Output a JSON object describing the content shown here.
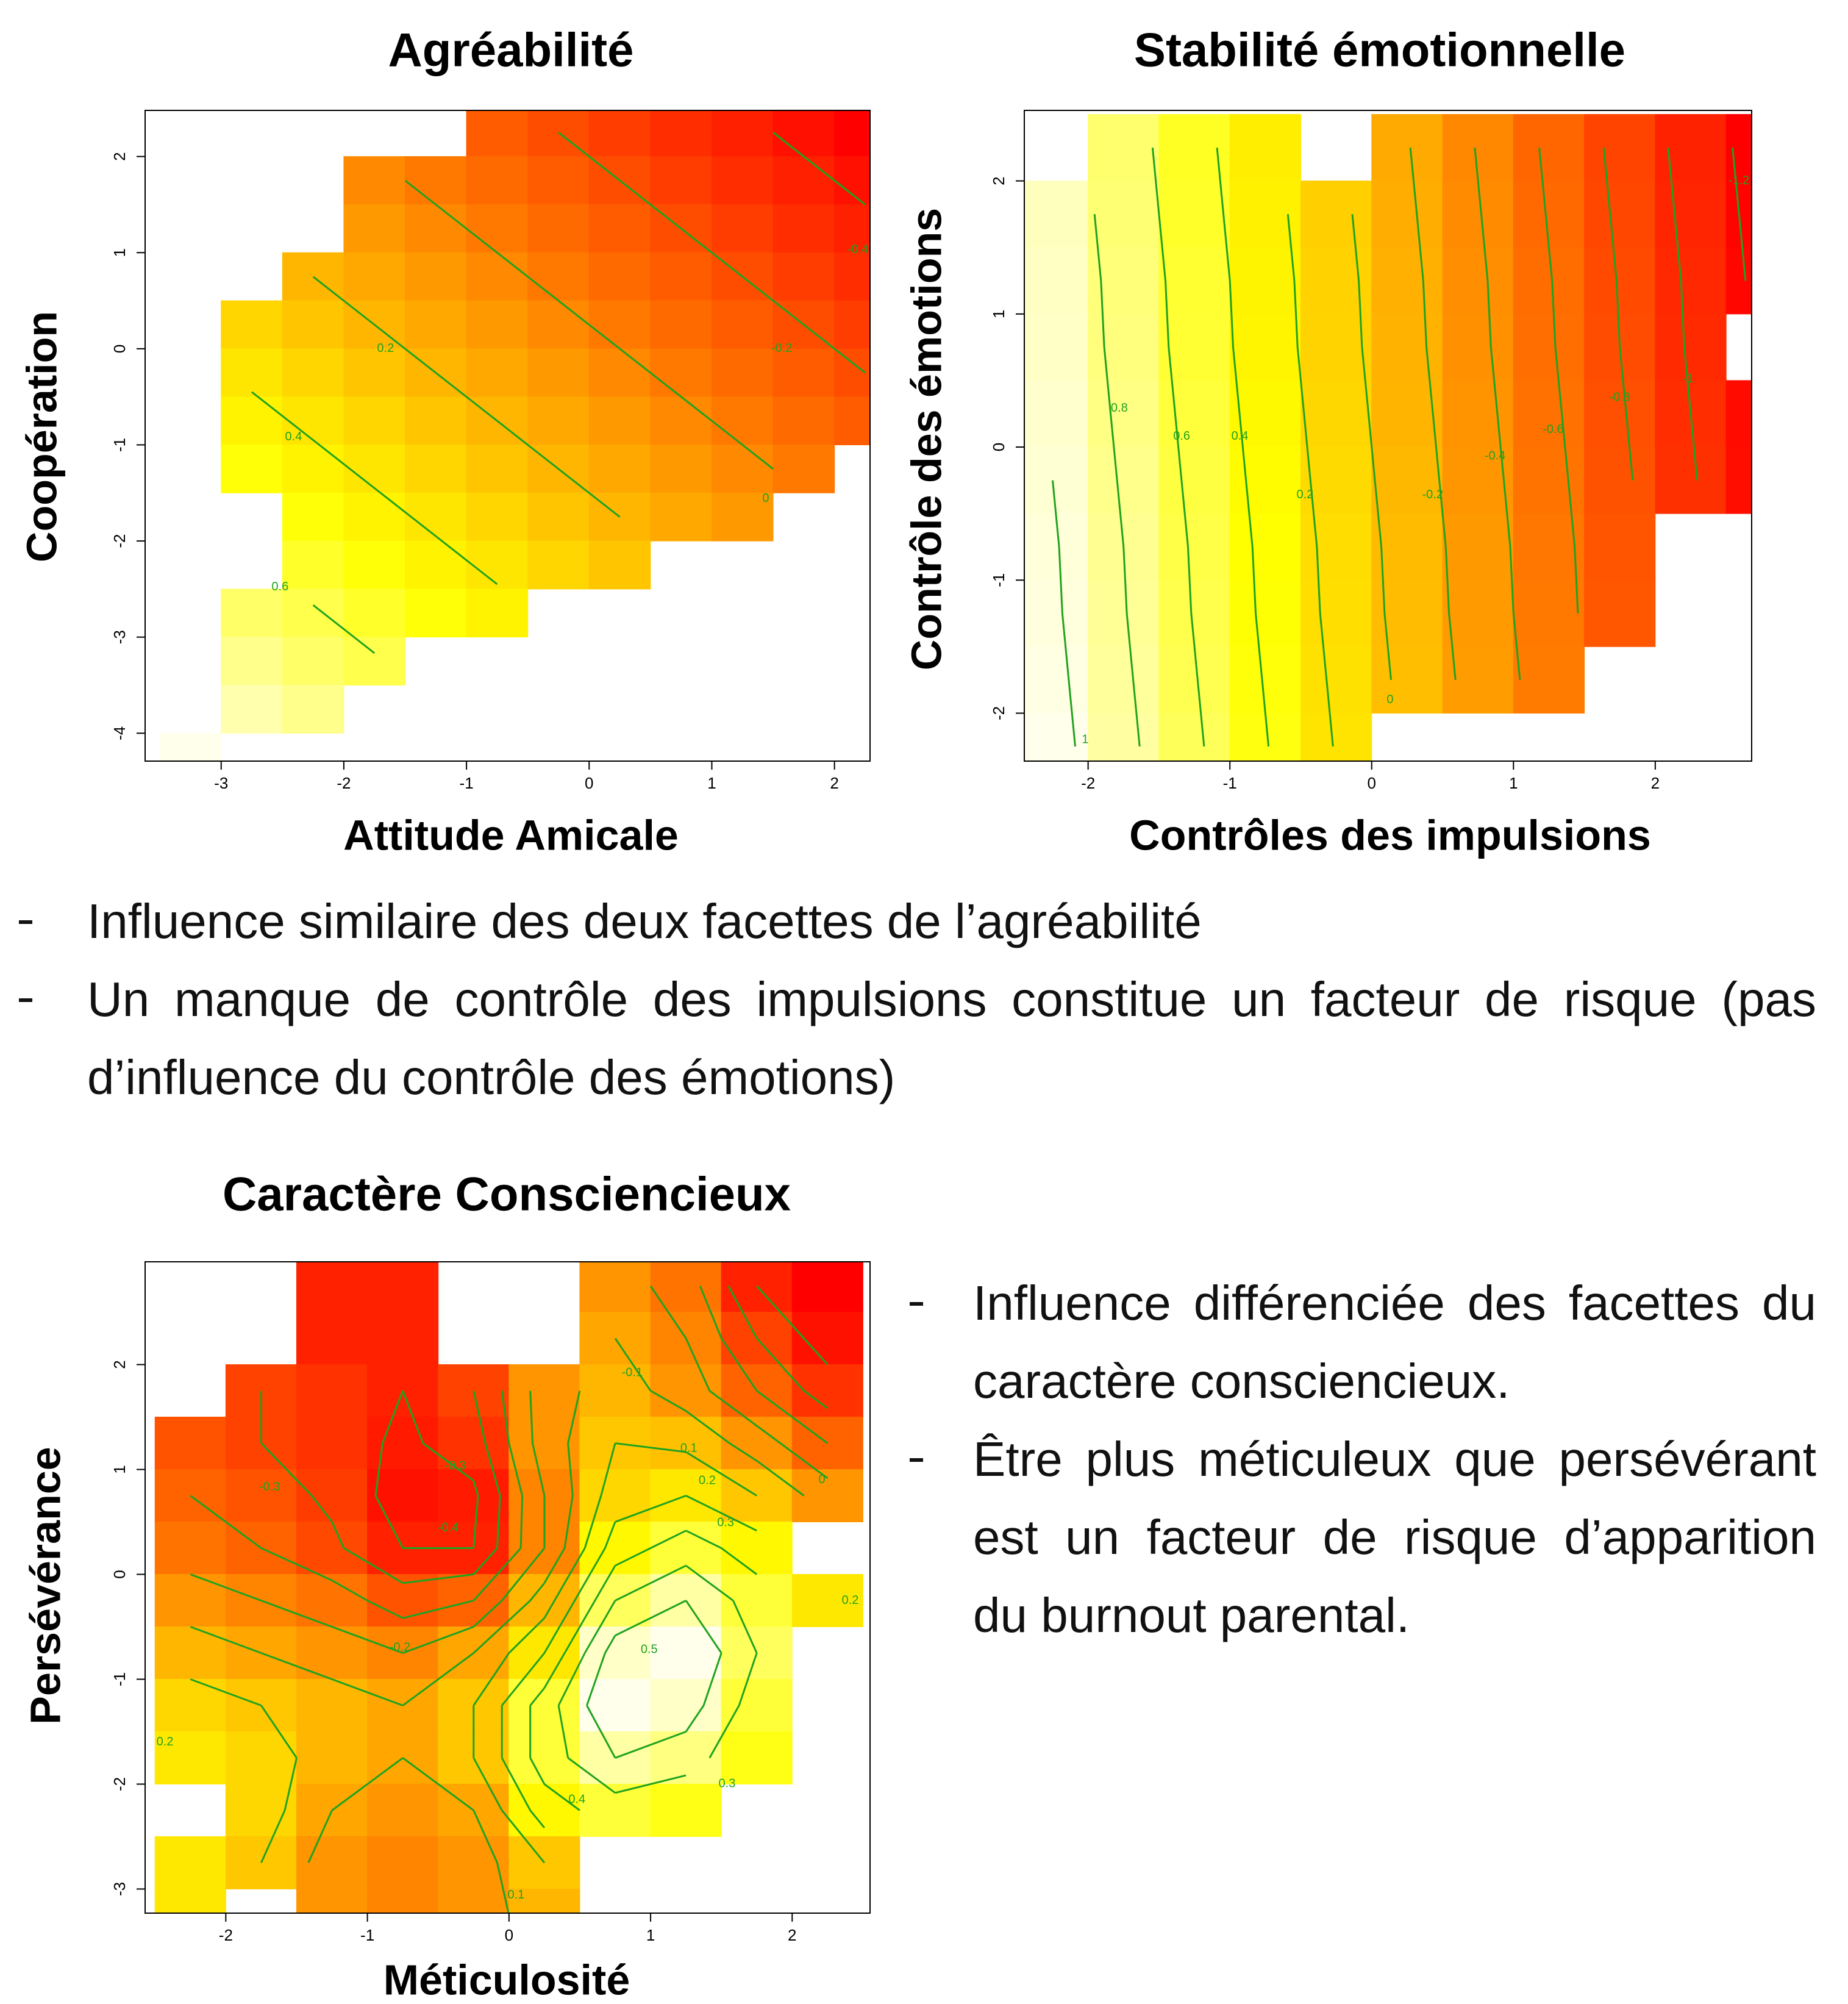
{
  "chart_data": [
    {
      "type": "heatmap",
      "title": "Agréabilité",
      "x_label": "Attitude Amicale",
      "y_label": "Coopération",
      "xlim": [
        -3.62,
        2.29
      ],
      "ylim": [
        -4.29,
        2.48
      ],
      "xticks": [
        -3,
        -2,
        -1,
        0,
        1,
        2
      ],
      "yticks": [
        -4,
        -3,
        -2,
        -1,
        0,
        1,
        2
      ],
      "x": [
        -3.25,
        -2.75,
        -2.25,
        -1.75,
        -1.25,
        -0.75,
        -0.25,
        0.25,
        0.75,
        1.25,
        1.75,
        2.25
      ],
      "y": [
        2.25,
        1.75,
        1.25,
        0.75,
        0.25,
        -0.25,
        -0.75,
        -1.25,
        -1.75,
        -2.25,
        -2.75,
        -3.25,
        -3.75,
        -4.25
      ],
      "z": [
        [
          null,
          null,
          null,
          null,
          null,
          -0.14,
          -0.2,
          -0.26,
          -0.32,
          -0.37,
          -0.43,
          -0.49
        ],
        [
          null,
          null,
          null,
          0.03,
          -0.03,
          -0.09,
          -0.14,
          -0.2,
          -0.26,
          -0.32,
          -0.37,
          -0.43
        ],
        [
          null,
          null,
          null,
          0.09,
          0.03,
          -0.03,
          -0.09,
          -0.14,
          -0.2,
          -0.26,
          -0.32,
          -0.37
        ],
        [
          null,
          null,
          0.2,
          0.15,
          0.09,
          0.03,
          -0.03,
          -0.09,
          -0.14,
          -0.2,
          -0.26,
          -0.32
        ],
        [
          null,
          0.32,
          0.26,
          0.2,
          0.15,
          0.09,
          0.03,
          -0.03,
          -0.09,
          -0.14,
          -0.2,
          -0.26
        ],
        [
          null,
          0.38,
          0.32,
          0.26,
          0.2,
          0.15,
          0.09,
          0.03,
          -0.03,
          -0.09,
          -0.14,
          -0.2
        ],
        [
          null,
          0.43,
          0.38,
          0.32,
          0.26,
          0.2,
          0.15,
          0.09,
          0.03,
          -0.03,
          -0.09,
          -0.14
        ],
        [
          null,
          0.49,
          0.43,
          0.38,
          0.32,
          0.26,
          0.2,
          0.15,
          0.09,
          0.03,
          -0.03,
          null
        ],
        [
          null,
          null,
          0.49,
          0.43,
          0.38,
          0.32,
          0.26,
          0.2,
          0.15,
          0.09,
          null,
          null
        ],
        [
          null,
          null,
          0.55,
          0.49,
          0.43,
          0.38,
          0.32,
          0.26,
          null,
          null,
          null,
          null
        ],
        [
          null,
          0.66,
          0.61,
          0.55,
          0.49,
          0.43,
          null,
          null,
          null,
          null,
          null,
          null
        ],
        [
          null,
          0.72,
          0.66,
          0.61,
          null,
          null,
          null,
          null,
          null,
          null,
          null,
          null
        ],
        [
          null,
          0.78,
          0.72,
          null,
          null,
          null,
          null,
          null,
          null,
          null,
          null,
          null
        ],
        [
          0.89,
          null,
          null,
          null,
          null,
          null,
          null,
          null,
          null,
          null,
          null,
          null
        ]
      ],
      "contour_levels": [
        -0.4,
        -0.2,
        0,
        0.2,
        0.4,
        0.6
      ],
      "contour_color": "#1fa31f",
      "contour_labels": [
        {
          "level": 0.2,
          "x": -1.66,
          "y": 0
        },
        {
          "level": 0.4,
          "x": -2.41,
          "y": -0.92
        },
        {
          "level": 0.6,
          "x": -2.52,
          "y": -2.48
        },
        {
          "level": 0,
          "x": 1.44,
          "y": -1.56
        },
        {
          "level": -0.2,
          "x": 1.57,
          "y": 0
        },
        {
          "level": -0.4,
          "x": 2.19,
          "y": 1.03
        }
      ]
    },
    {
      "type": "heatmap",
      "title": "Stabilité émotionnelle",
      "x_label": "Contrôles des impulsions",
      "y_label": "Contrôle des émotions",
      "xlim": [
        -2.45,
        2.68
      ],
      "ylim": [
        -2.36,
        2.53
      ],
      "xticks": [
        -2,
        -1,
        0,
        1,
        2
      ],
      "yticks": [
        -2,
        -1,
        0,
        1,
        2
      ],
      "x": [
        -2.25,
        -1.75,
        -1.25,
        -0.75,
        -0.25,
        0.25,
        0.75,
        1.25,
        1.75,
        2.25,
        2.75
      ],
      "y": [
        2.25,
        1.75,
        1.25,
        0.75,
        0.25,
        -0.25,
        -0.75,
        -1.25,
        -1.75,
        -2.25
      ],
      "z": [
        [
          null,
          0.69,
          0.47,
          0.25,
          null,
          -0.19,
          -0.41,
          -0.63,
          -0.85,
          -1.07,
          -1.29
        ],
        [
          0.93,
          0.71,
          0.49,
          0.27,
          0.05,
          -0.17,
          -0.39,
          -0.61,
          -0.83,
          -1.05,
          -1.27
        ],
        [
          0.95,
          0.73,
          0.51,
          0.29,
          0.07,
          -0.15,
          -0.37,
          -0.59,
          -0.81,
          -1.03,
          -1.25
        ],
        [
          0.96,
          0.74,
          0.52,
          0.3,
          0.08,
          -0.14,
          -0.36,
          -0.58,
          -0.8,
          -1.02,
          null
        ],
        [
          0.98,
          0.76,
          0.54,
          0.32,
          0.1,
          -0.12,
          -0.34,
          -0.56,
          -0.78,
          -1.0,
          -1.22
        ],
        [
          1.0,
          0.78,
          0.56,
          0.34,
          0.12,
          -0.1,
          -0.32,
          -0.54,
          -0.76,
          -0.98,
          -1.2
        ],
        [
          1.02,
          0.8,
          0.58,
          0.36,
          0.14,
          -0.08,
          -0.3,
          -0.52,
          -0.74,
          null,
          null
        ],
        [
          1.03,
          0.81,
          0.59,
          0.37,
          0.15,
          -0.07,
          -0.29,
          -0.51,
          -0.73,
          null,
          null
        ],
        [
          1.05,
          0.83,
          0.61,
          0.39,
          0.17,
          -0.05,
          -0.27,
          -0.49,
          null,
          null,
          null
        ],
        [
          1.07,
          0.85,
          0.63,
          0.41,
          0.19,
          null,
          null,
          null,
          null,
          null,
          null
        ]
      ],
      "contour_levels": [
        -1.2,
        -1,
        -0.8,
        -0.6,
        -0.4,
        -0.2,
        0,
        0.2,
        0.4,
        0.6,
        0.8,
        1
      ],
      "contour_color": "#1fa31f",
      "contour_labels": [
        {
          "level": 1,
          "x": -2.02,
          "y": -2.2
        },
        {
          "level": 0.8,
          "x": -1.78,
          "y": 0.29
        },
        {
          "level": 0.6,
          "x": -1.34,
          "y": 0.08
        },
        {
          "level": 0.4,
          "x": -0.93,
          "y": 0.08
        },
        {
          "level": 0.2,
          "x": -0.47,
          "y": -0.36
        },
        {
          "level": 0,
          "x": 0.13,
          "y": -1.9
        },
        {
          "level": -0.2,
          "x": 0.43,
          "y": -0.36
        },
        {
          "level": -0.4,
          "x": 0.87,
          "y": -0.07
        },
        {
          "level": -0.6,
          "x": 1.28,
          "y": 0.13
        },
        {
          "level": -0.8,
          "x": 1.75,
          "y": 0.37
        },
        {
          "level": -1,
          "x": 2.23,
          "y": 0.51
        },
        {
          "level": -1.2,
          "x": 2.59,
          "y": 2.0
        }
      ]
    },
    {
      "type": "heatmap",
      "title": "Caractère Consciencieux",
      "x_label": "Méticulosité",
      "y_label": "Persévérance",
      "xlim": [
        -2.57,
        2.55
      ],
      "ylim": [
        -3.23,
        2.98
      ],
      "xticks": [
        -2,
        -1,
        0,
        1,
        2
      ],
      "yticks": [
        -3,
        -2,
        -1,
        0,
        1,
        2
      ],
      "x": [
        -2.25,
        -1.75,
        -1.25,
        -0.75,
        -0.25,
        0.25,
        0.75,
        1.25,
        1.75,
        2.25
      ],
      "y": [
        2.75,
        2.25,
        1.75,
        1.25,
        0.75,
        0.25,
        -0.25,
        -0.75,
        -1.25,
        -1.75,
        -2.25,
        -2.75,
        -3.25
      ],
      "z": [
        [
          null,
          null,
          -0.4,
          -0.4,
          null,
          null,
          -0.05,
          -0.15,
          -0.4,
          -0.5
        ],
        [
          null,
          null,
          -0.4,
          -0.4,
          null,
          null,
          0.0,
          -0.1,
          -0.3,
          -0.45
        ],
        [
          null,
          -0.3,
          -0.35,
          -0.4,
          -0.3,
          -0.05,
          0.05,
          -0.05,
          -0.2,
          -0.35
        ],
        [
          -0.25,
          -0.3,
          -0.35,
          -0.42,
          -0.35,
          -0.05,
          0.1,
          0.08,
          -0.05,
          -0.2
        ],
        [
          -0.2,
          -0.25,
          -0.32,
          -0.45,
          -0.42,
          -0.1,
          0.15,
          0.2,
          0.1,
          -0.05
        ],
        [
          -0.15,
          -0.2,
          -0.28,
          -0.4,
          -0.4,
          -0.1,
          0.25,
          0.35,
          0.25,
          null
        ],
        [
          -0.05,
          -0.1,
          -0.15,
          -0.25,
          -0.2,
          0.05,
          0.4,
          0.5,
          0.35,
          0.2
        ],
        [
          0.05,
          0.0,
          -0.05,
          -0.1,
          0.0,
          0.2,
          0.55,
          0.6,
          0.4,
          null
        ],
        [
          0.15,
          0.1,
          0.05,
          0.0,
          0.1,
          0.35,
          0.6,
          0.55,
          0.35,
          null
        ],
        [
          0.2,
          0.15,
          0.05,
          0.0,
          0.1,
          0.35,
          0.5,
          0.45,
          0.3,
          null
        ],
        [
          null,
          0.15,
          0.0,
          -0.05,
          0.0,
          0.25,
          0.35,
          0.3,
          null,
          null
        ],
        [
          0.2,
          0.1,
          -0.05,
          -0.1,
          -0.05,
          0.1,
          null,
          null,
          null,
          null
        ],
        [
          0.2,
          null,
          -0.05,
          -0.1,
          -0.05,
          0.05,
          null,
          null,
          null,
          null
        ]
      ],
      "contour_levels": [
        -0.4,
        -0.3,
        -0.2,
        -0.1,
        0,
        0.1,
        0.2,
        0.3,
        0.4,
        0.5
      ],
      "contour_color": "#1fa31f",
      "contour_labels": [
        {
          "level": -0.3,
          "x": -1.69,
          "y": 0.83
        },
        {
          "level": -0.4,
          "x": -0.43,
          "y": 0.44
        },
        {
          "level": -0.3,
          "x": -0.38,
          "y": 1.03
        },
        {
          "level": -0.2,
          "x": -0.77,
          "y": -0.7
        },
        {
          "level": -0.1,
          "x": 0.87,
          "y": 1.92
        },
        {
          "level": 0.1,
          "x": 1.27,
          "y": 1.2
        },
        {
          "level": 0.2,
          "x": 1.4,
          "y": 0.89
        },
        {
          "level": 0.3,
          "x": 1.53,
          "y": 0.49
        },
        {
          "level": 0.5,
          "x": 0.99,
          "y": -0.72
        },
        {
          "level": 0.4,
          "x": 0.48,
          "y": -2.15
        },
        {
          "level": 0.3,
          "x": 1.54,
          "y": -2.0
        },
        {
          "level": 0.2,
          "x": 2.41,
          "y": -0.25
        },
        {
          "level": 0.2,
          "x": -2.43,
          "y": -1.6
        },
        {
          "level": 0.1,
          "x": 0.05,
          "y": -3.06
        },
        {
          "level": 0,
          "x": 2.21,
          "y": 0.9
        }
      ]
    }
  ],
  "bullets_top": [
    "Influence similaire des deux facettes de l’agréabilité",
    "Un manque de contrôle des impulsions constitue un facteur de risque (pas d’influence du contrôle des émotions)"
  ],
  "bullets_right": [
    "Influence différenciée des facettes du caractère consciencieux.",
    "Être plus méticuleux que persévérant est un facteur de risque d’apparition du burnout parental."
  ]
}
